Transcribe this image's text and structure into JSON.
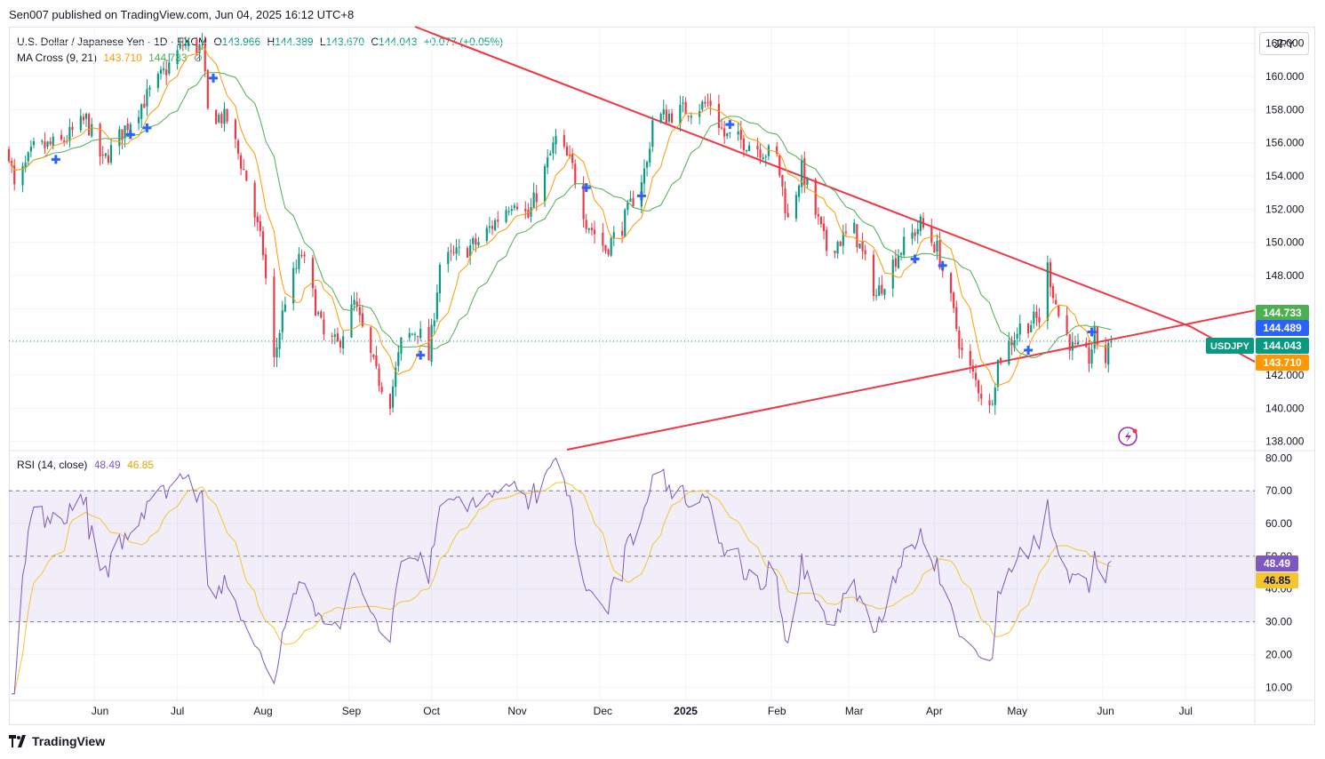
{
  "header": {
    "published": "Sen007 published on TradingView.com, Jun 04, 2025 16:12 UTC+8",
    "symbol_title": "U.S. Dollar / Japanese Yen · 1D · FXCM",
    "o_label": "O",
    "o": "143.966",
    "h_label": "H",
    "h": "144.389",
    "l_label": "L",
    "l": "143.670",
    "c_label": "C",
    "c": "144.043",
    "change": "+0.077 (+0.05%)"
  },
  "ma_legend": {
    "label": "MA Cross (9, 21)",
    "fast": "143.710",
    "slow": "144.733",
    "icon": "hidden-eye-icon"
  },
  "rsi_legend": {
    "label": "RSI (14, close)",
    "rsi": "48.49",
    "ma": "46.85"
  },
  "currency_button": "JPY",
  "brand": "TradingView",
  "colors": {
    "up": "#089981",
    "down": "#f23645",
    "ma_fast": "#ff9800",
    "ma_slow": "#4caf50",
    "trend": "#f23645",
    "rsi": "#7e57c2",
    "rsi_ma": "#f5c431",
    "cross": "#2962ff"
  },
  "chart_data": [
    {
      "type": "candlestick",
      "symbol": "USDJPY",
      "ylim": [
        137.5,
        163
      ],
      "yticks": [
        "162.000",
        "160.000",
        "158.000",
        "156.000",
        "154.000",
        "152.000",
        "150.000",
        "148.000",
        "146.000",
        "144.000",
        "142.000",
        "140.000",
        "138.000"
      ],
      "xticks": [
        "Jun",
        "Jul",
        "Aug",
        "Sep",
        "Oct",
        "Nov",
        "Dec",
        "2025",
        "Feb",
        "Mar",
        "Apr",
        "May",
        "Jun",
        "Jul"
      ],
      "x_domain": [
        "2024-05-01",
        "2025-07-26"
      ],
      "anchors": [
        [
          "2024-05-01",
          155.5
        ],
        [
          "2024-05-03",
          153.2
        ],
        [
          "2024-05-10",
          155.6
        ],
        [
          "2024-05-20",
          156.0
        ],
        [
          "2024-05-29",
          157.4
        ],
        [
          "2024-06-04",
          154.8
        ],
        [
          "2024-06-14",
          157.4
        ],
        [
          "2024-06-24",
          159.7
        ],
        [
          "2024-07-03",
          161.9
        ],
        [
          "2024-07-10",
          161.7
        ],
        [
          "2024-07-12",
          157.8
        ],
        [
          "2024-07-19",
          157.4
        ],
        [
          "2024-07-26",
          153.8
        ],
        [
          "2024-08-01",
          149.4
        ],
        [
          "2024-08-05",
          142.8
        ],
        [
          "2024-08-09",
          146.6
        ],
        [
          "2024-08-15",
          149.3
        ],
        [
          "2024-08-23",
          144.3
        ],
        [
          "2024-08-28",
          143.8
        ],
        [
          "2024-09-03",
          146.3
        ],
        [
          "2024-09-11",
          142.0
        ],
        [
          "2024-09-16",
          140.5
        ],
        [
          "2024-09-20",
          143.9
        ],
        [
          "2024-09-26",
          144.8
        ],
        [
          "2024-09-30",
          143.0
        ],
        [
          "2024-10-04",
          148.7
        ],
        [
          "2024-10-18",
          150.0
        ],
        [
          "2024-10-31",
          152.7
        ],
        [
          "2024-11-05",
          151.5
        ],
        [
          "2024-11-15",
          156.2
        ],
        [
          "2024-11-21",
          154.5
        ],
        [
          "2024-11-26",
          151.3
        ],
        [
          "2024-12-03",
          149.6
        ],
        [
          "2024-12-09",
          151.0
        ],
        [
          "2024-12-18",
          154.7
        ],
        [
          "2024-12-20",
          157.4
        ],
        [
          "2024-12-30",
          157.9
        ],
        [
          "2025-01-10",
          158.4
        ],
        [
          "2025-01-15",
          156.4
        ],
        [
          "2025-01-24",
          156.0
        ],
        [
          "2025-02-03",
          155.1
        ],
        [
          "2025-02-07",
          151.3
        ],
        [
          "2025-02-12",
          154.4
        ],
        [
          "2025-02-21",
          149.6
        ],
        [
          "2025-03-03",
          150.7
        ],
        [
          "2025-03-11",
          146.8
        ],
        [
          "2025-03-19",
          149.4
        ],
        [
          "2025-03-27",
          151.1
        ],
        [
          "2025-04-02",
          149.6
        ],
        [
          "2025-04-07",
          146.4
        ],
        [
          "2025-04-11",
          143.3
        ],
        [
          "2025-04-21",
          139.9
        ],
        [
          "2025-04-24",
          142.8
        ],
        [
          "2025-05-02",
          144.9
        ],
        [
          "2025-05-09",
          145.4
        ],
        [
          "2025-05-12",
          148.5
        ],
        [
          "2025-05-16",
          145.6
        ],
        [
          "2025-05-21",
          143.6
        ],
        [
          "2025-05-27",
          143.0
        ],
        [
          "2025-05-29",
          144.4
        ],
        [
          "2025-06-02",
          142.9
        ],
        [
          "2025-06-04",
          144.043
        ]
      ],
      "ma_fast_last": 143.71,
      "ma_slow_last": 144.733,
      "last_close": 144.043,
      "marker": 144.489,
      "price_labels": [
        {
          "value": 144.733,
          "text": "144.733",
          "color": "#4caf50"
        },
        {
          "value": 144.489,
          "text": "144.489",
          "color": "#2962ff"
        },
        {
          "value": 144.043,
          "text": "144.043",
          "color": "#089981",
          "tag": "USDJPY"
        },
        {
          "value": 143.71,
          "text": "143.710",
          "color": "#ff9800"
        }
      ],
      "crosses": [
        [
          "2024-05-18",
          155.0
        ],
        [
          "2024-06-14",
          156.5
        ],
        [
          "2024-06-20",
          156.9
        ],
        [
          "2024-07-14",
          159.9
        ],
        [
          "2024-09-27",
          143.2
        ],
        [
          "2024-11-26",
          153.3
        ],
        [
          "2024-12-16",
          152.8
        ],
        [
          "2025-01-17",
          157.1
        ],
        [
          "2025-03-25",
          149.0
        ],
        [
          "2025-04-04",
          148.6
        ],
        [
          "2025-05-05",
          143.5
        ],
        [
          "2025-05-28",
          144.6
        ]
      ],
      "trendlines": [
        {
          "from": [
            "2024-09-25",
            163.0
          ],
          "to": [
            "2025-07-03",
            144.9
          ]
        },
        {
          "from": [
            "2024-11-19",
            137.5
          ],
          "to": [
            "2025-07-26",
            145.9
          ]
        },
        {
          "from": [
            "2025-07-03",
            144.9
          ],
          "to": [
            "2025-07-26",
            142.8
          ]
        }
      ]
    },
    {
      "type": "line",
      "title": "RSI (14, close)",
      "ylim": [
        6,
        82
      ],
      "yticks": [
        "80.00",
        "70.00",
        "60.00",
        "50.00",
        "40.00",
        "30.00",
        "20.00",
        "10.00"
      ],
      "band": [
        30,
        70
      ],
      "midline": 50,
      "rsi_last": 48.49,
      "rsi_ma_last": 46.85
    }
  ]
}
